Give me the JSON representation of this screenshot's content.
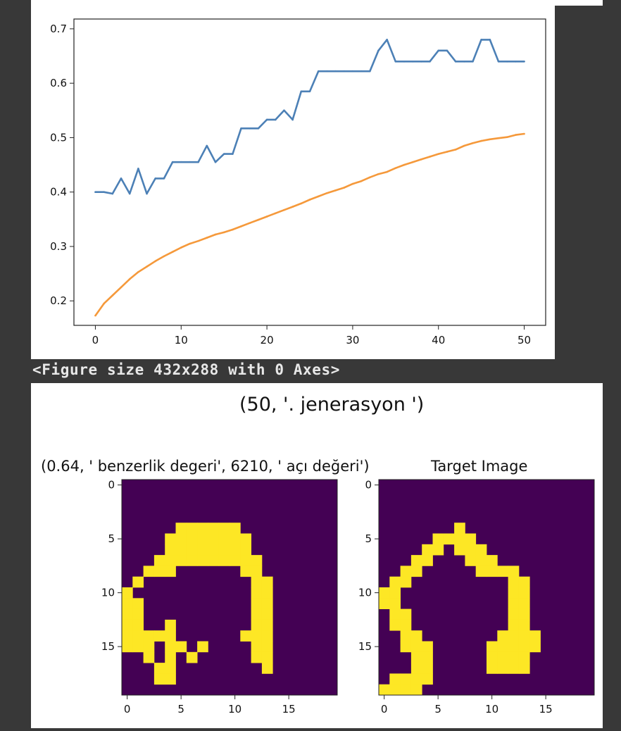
{
  "figure_caption": "<Figure size 432x288 with 0 Axes>",
  "chart_data": [
    {
      "type": "line",
      "x_ticks": [
        0,
        10,
        20,
        30,
        40,
        50
      ],
      "y_ticks": [
        0.2,
        0.3,
        0.4,
        0.5,
        0.6,
        0.7
      ],
      "xlim": [
        -2.5,
        52.5
      ],
      "ylim": [
        0.155,
        0.718
      ],
      "grid": false,
      "series": [
        {
          "color": "#4c80b6",
          "x": [
            0,
            1,
            2,
            3,
            4,
            5,
            6,
            7,
            8,
            9,
            10,
            11,
            12,
            13,
            14,
            15,
            16,
            17,
            18,
            19,
            20,
            21,
            22,
            23,
            24,
            25,
            26,
            27,
            28,
            29,
            30,
            31,
            32,
            33,
            34,
            35,
            36,
            37,
            38,
            39,
            40,
            41,
            42,
            43,
            44,
            45,
            46,
            47,
            48,
            49,
            50
          ],
          "values": [
            0.4,
            0.4,
            0.397,
            0.425,
            0.397,
            0.443,
            0.397,
            0.425,
            0.425,
            0.455,
            0.455,
            0.455,
            0.455,
            0.485,
            0.455,
            0.47,
            0.47,
            0.517,
            0.517,
            0.517,
            0.533,
            0.533,
            0.55,
            0.533,
            0.585,
            0.585,
            0.622,
            0.622,
            0.622,
            0.622,
            0.622,
            0.622,
            0.622,
            0.66,
            0.68,
            0.64,
            0.64,
            0.64,
            0.64,
            0.64,
            0.66,
            0.66,
            0.64,
            0.64,
            0.64,
            0.68,
            0.68,
            0.64,
            0.64,
            0.64,
            0.64
          ]
        },
        {
          "color": "#f5993b",
          "x": [
            0,
            1,
            2,
            3,
            4,
            5,
            6,
            7,
            8,
            9,
            10,
            11,
            12,
            13,
            14,
            15,
            16,
            17,
            18,
            19,
            20,
            21,
            22,
            23,
            24,
            25,
            26,
            27,
            28,
            29,
            30,
            31,
            32,
            33,
            34,
            35,
            36,
            37,
            38,
            39,
            40,
            41,
            42,
            43,
            44,
            45,
            46,
            47,
            48,
            49,
            50
          ],
          "values": [
            0.173,
            0.195,
            0.21,
            0.225,
            0.24,
            0.253,
            0.263,
            0.273,
            0.282,
            0.29,
            0.298,
            0.305,
            0.31,
            0.316,
            0.322,
            0.326,
            0.331,
            0.337,
            0.343,
            0.349,
            0.355,
            0.361,
            0.367,
            0.373,
            0.379,
            0.386,
            0.392,
            0.398,
            0.403,
            0.408,
            0.415,
            0.42,
            0.427,
            0.433,
            0.437,
            0.444,
            0.45,
            0.455,
            0.46,
            0.465,
            0.47,
            0.474,
            0.478,
            0.485,
            0.49,
            0.494,
            0.497,
            0.499,
            0.501,
            0.505,
            0.507
          ]
        }
      ]
    },
    {
      "type": "heatmap",
      "title": "(0.64, ' benzerlik degeri', 6210, ' açı değeri')",
      "x_ticks": [
        0,
        5,
        10,
        15
      ],
      "y_ticks": [
        0,
        5,
        10,
        15
      ],
      "grid_size": [
        20,
        20
      ],
      "colors": {
        "background": "#440154",
        "foreground": "#fde725"
      },
      "rows": [
        "00000000000000000000",
        "00000000000000000000",
        "00000000000000000000",
        "00000000000000000000",
        "00000555555000000000",
        "00005555555500000000",
        "00005555555500000000",
        "00055556555550000000",
        "00555000000550000000",
        "05000000000055000000",
        "10000000000055000000",
        "11000000000055000000",
        "11000000000055000000",
        "11001000000055000000",
        "11111000000555000000",
        "11101101000055000000",
        "00101010000055000000",
        "00011000000001000000",
        "00011000000000000000",
        "00000000000000000000"
      ]
    },
    {
      "type": "heatmap",
      "title": "Target Image",
      "x_ticks": [
        0,
        5,
        10,
        15
      ],
      "y_ticks": [
        0,
        5,
        10,
        15
      ],
      "grid_size": [
        20,
        20
      ],
      "colors": {
        "background": "#440154",
        "foreground": "#fde725"
      },
      "rows": [
        "00000000000000000000",
        "00000000000000000000",
        "00000000000000000000",
        "00000000000000000000",
        "00000001000000000000",
        "00000111100000000000",
        "00001101110000000000",
        "00011000111000000000",
        "00110000011110000000",
        "01100000000011000000",
        "11000000000011000000",
        "11000000000011000000",
        "01100000000011000000",
        "01100000000011000000",
        "00110000000111100000",
        "00111000001111100000",
        "00011000001111000000",
        "00011000001111000000",
        "01111000000000000000",
        "11110000000000000000"
      ]
    }
  ],
  "suptitle": "(50, '. jenerasyon ')"
}
